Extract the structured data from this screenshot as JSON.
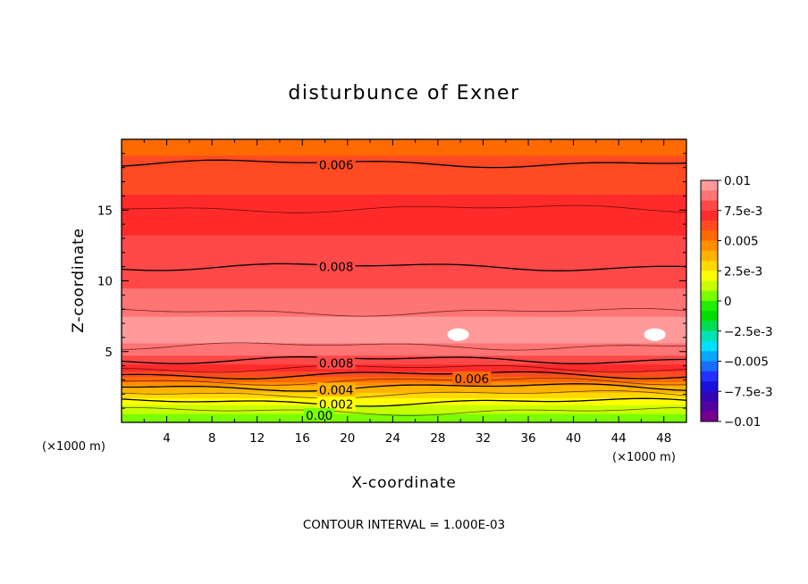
{
  "chart_data": {
    "type": "contour",
    "title": "disturbunce of Exner",
    "xlabel": "X-coordinate",
    "ylabel": "Z-coordinate",
    "x_unit": "(×1000 m)",
    "y_unit": "(×1000 m)",
    "xlim": [
      0,
      50
    ],
    "ylim": [
      0,
      20
    ],
    "x_ticks": [
      "4",
      "8",
      "12",
      "16",
      "20",
      "24",
      "28",
      "32",
      "36",
      "40",
      "44",
      "48"
    ],
    "y_ticks": [
      "5",
      "10",
      "15"
    ],
    "contour_interval_text": "CONTOUR INTERVAL = 1.000E-03",
    "colorbar": {
      "range": [
        -0.01,
        0.01
      ],
      "tick_labels": [
        "0.01",
        "7.5e-3",
        "0.005",
        "2.5e-3",
        "0",
        "−2.5e-3",
        "−0.005",
        "−7.5e-3",
        "−0.01"
      ],
      "colors": [
        "#ff9a9a",
        "#ff7474",
        "#ff4848",
        "#ff2a2a",
        "#ff4a22",
        "#ff6a00",
        "#ff8f00",
        "#ffb300",
        "#ffd800",
        "#ffff00",
        "#c8ff00",
        "#7aff00",
        "#22ee00",
        "#00dd00",
        "#00dd55",
        "#00e3b5",
        "#00e0ff",
        "#0aa7ff",
        "#1a6cff",
        "#2231ff",
        "#1a10dd",
        "#3306b4",
        "#54049e",
        "#74008e"
      ]
    },
    "profile": [
      {
        "z": 0.1,
        "v": 0.0001
      },
      {
        "z": 0.5,
        "v": 0.0006
      },
      {
        "z": 1.0,
        "v": 0.0013
      },
      {
        "z": 1.5,
        "v": 0.0021
      },
      {
        "z": 2.0,
        "v": 0.003
      },
      {
        "z": 2.5,
        "v": 0.004
      },
      {
        "z": 3.0,
        "v": 0.0052
      },
      {
        "z": 3.5,
        "v": 0.0063
      },
      {
        "z": 4.0,
        "v": 0.0074
      },
      {
        "z": 4.5,
        "v": 0.0081
      },
      {
        "z": 5.0,
        "v": 0.0086
      },
      {
        "z": 5.5,
        "v": 0.0091
      },
      {
        "z": 6.3,
        "v": 0.0095
      },
      {
        "z": 7.0,
        "v": 0.0094
      },
      {
        "z": 8.0,
        "v": 0.0089
      },
      {
        "z": 9.0,
        "v": 0.0085
      },
      {
        "z": 10.0,
        "v": 0.0082
      },
      {
        "z": 11.0,
        "v": 0.008
      },
      {
        "z": 12.5,
        "v": 0.0077
      },
      {
        "z": 14.5,
        "v": 0.0072
      },
      {
        "z": 16.0,
        "v": 0.0067
      },
      {
        "z": 18.3,
        "v": 0.006
      },
      {
        "z": 20.0,
        "v": 0.0055
      }
    ],
    "contour_labels": [
      {
        "text": "0.006",
        "x": 19.0,
        "z": 18.2
      },
      {
        "text": "0.008",
        "x": 19.0,
        "z": 11.0
      },
      {
        "text": "0.008",
        "x": 19.0,
        "z": 4.2
      },
      {
        "text": "0.006",
        "x": 31.0,
        "z": 3.1
      },
      {
        "text": "0.004",
        "x": 19.0,
        "z": 2.3
      },
      {
        "text": "0.002",
        "x": 19.0,
        "z": 1.3
      },
      {
        "text": "0.00",
        "x": 17.5,
        "z": 0.5
      }
    ],
    "maxima": [
      {
        "x": 29.8,
        "z": 6.2
      },
      {
        "x": 47.2,
        "z": 6.2
      }
    ],
    "grid": false
  }
}
